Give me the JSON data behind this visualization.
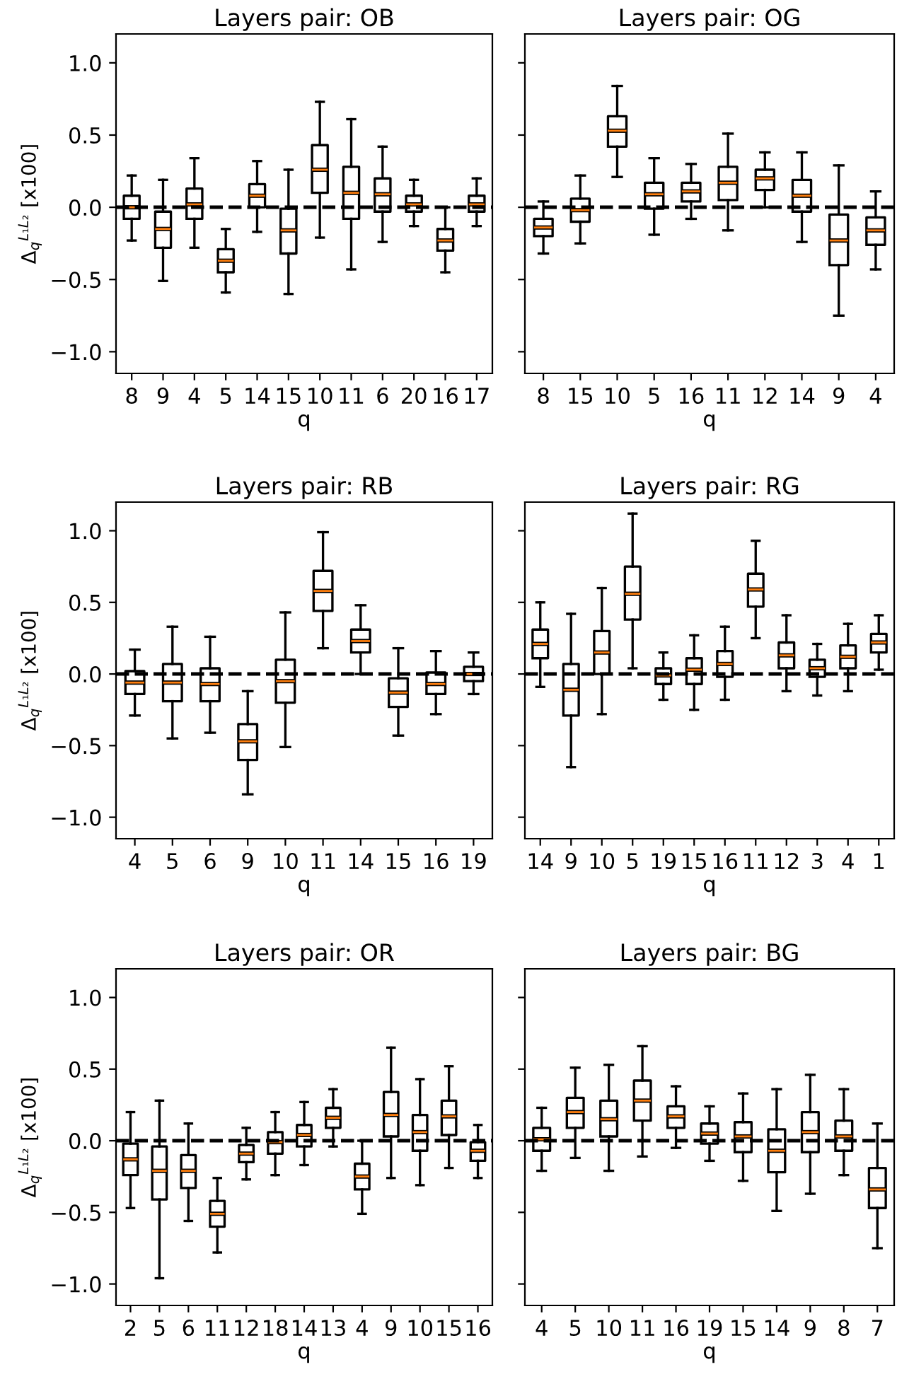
{
  "chart_data": [
    {
      "type": "box",
      "title": "Layers pair: OB",
      "xlabel": "q",
      "ylabel": "Δ$_{q}$$^{L₁L₂}$ [x100]",
      "categories": [
        "8",
        "9",
        "4",
        "5",
        "14",
        "15",
        "10",
        "11",
        "6",
        "20",
        "16",
        "17"
      ],
      "ylim": [
        -1.15,
        1.2
      ],
      "yticks": [
        {
          "value": -1.0,
          "label": "−1.0"
        },
        {
          "value": -0.5,
          "label": "−0.5"
        },
        {
          "value": 0.0,
          "label": "0.0"
        },
        {
          "value": 0.5,
          "label": "0.5"
        },
        {
          "value": 1.0,
          "label": "1.0"
        }
      ],
      "grid": false,
      "ref_lines": [
        {
          "axis": "y",
          "value": 0,
          "color": "#000000",
          "line_style": "dashed"
        }
      ],
      "boxes": [
        {
          "low": -0.23,
          "q1": -0.08,
          "median": 0.0,
          "q3": 0.08,
          "high": 0.22
        },
        {
          "low": -0.51,
          "q1": -0.28,
          "median": -0.15,
          "q3": -0.03,
          "high": 0.19
        },
        {
          "low": -0.28,
          "q1": -0.08,
          "median": 0.02,
          "q3": 0.13,
          "high": 0.34
        },
        {
          "low": -0.59,
          "q1": -0.45,
          "median": -0.37,
          "q3": -0.29,
          "high": -0.15
        },
        {
          "low": -0.17,
          "q1": 0.0,
          "median": 0.08,
          "q3": 0.16,
          "high": 0.32
        },
        {
          "low": -0.6,
          "q1": -0.32,
          "median": -0.16,
          "q3": -0.01,
          "high": 0.26
        },
        {
          "low": -0.21,
          "q1": 0.1,
          "median": 0.26,
          "q3": 0.43,
          "high": 0.73
        },
        {
          "low": -0.43,
          "q1": -0.08,
          "median": 0.1,
          "q3": 0.28,
          "high": 0.61
        },
        {
          "low": -0.24,
          "q1": -0.03,
          "median": 0.09,
          "q3": 0.2,
          "high": 0.42
        },
        {
          "low": -0.13,
          "q1": -0.03,
          "median": 0.02,
          "q3": 0.08,
          "high": 0.19
        },
        {
          "low": -0.45,
          "q1": -0.3,
          "median": -0.23,
          "q3": -0.15,
          "high": 0.0
        },
        {
          "low": -0.13,
          "q1": -0.03,
          "median": 0.02,
          "q3": 0.08,
          "high": 0.2
        }
      ]
    },
    {
      "type": "box",
      "title": "Layers pair: OG",
      "xlabel": "q",
      "categories": [
        "8",
        "15",
        "10",
        "5",
        "16",
        "11",
        "12",
        "14",
        "9",
        "4"
      ],
      "ylim": [
        -1.15,
        1.2
      ],
      "yticks": [
        {
          "value": -1.0,
          "label": null
        },
        {
          "value": -0.5,
          "label": null
        },
        {
          "value": 0.0,
          "label": null
        },
        {
          "value": 0.5,
          "label": null
        },
        {
          "value": 1.0,
          "label": null
        }
      ],
      "tick_labels": "x",
      "grid": false,
      "ref_lines": [
        {
          "axis": "y",
          "value": 0,
          "color": "#000000",
          "line_style": "dashed"
        }
      ],
      "boxes": [
        {
          "low": -0.32,
          "q1": -0.2,
          "median": -0.14,
          "q3": -0.08,
          "high": 0.04
        },
        {
          "low": -0.25,
          "q1": -0.1,
          "median": -0.02,
          "q3": 0.06,
          "high": 0.22
        },
        {
          "low": 0.21,
          "q1": 0.42,
          "median": 0.53,
          "q3": 0.63,
          "high": 0.84
        },
        {
          "low": -0.19,
          "q1": -0.01,
          "median": 0.09,
          "q3": 0.17,
          "high": 0.34
        },
        {
          "low": -0.08,
          "q1": 0.04,
          "median": 0.11,
          "q3": 0.17,
          "high": 0.3
        },
        {
          "low": -0.16,
          "q1": 0.05,
          "median": 0.17,
          "q3": 0.28,
          "high": 0.51
        },
        {
          "low": 0.0,
          "q1": 0.12,
          "median": 0.2,
          "q3": 0.26,
          "high": 0.38
        },
        {
          "low": -0.24,
          "q1": -0.03,
          "median": 0.08,
          "q3": 0.19,
          "high": 0.38
        },
        {
          "low": -0.75,
          "q1": -0.4,
          "median": -0.23,
          "q3": -0.05,
          "high": 0.29
        },
        {
          "low": -0.43,
          "q1": -0.26,
          "median": -0.16,
          "q3": -0.07,
          "high": 0.11
        }
      ]
    },
    {
      "type": "box",
      "title": "Layers pair: RB",
      "xlabel": "q",
      "ylabel": "Δ$_{q}$$^{L₁L₂}$ [x100]",
      "categories": [
        "4",
        "5",
        "6",
        "9",
        "10",
        "11",
        "14",
        "15",
        "16",
        "19"
      ],
      "ylim": [
        -1.15,
        1.2
      ],
      "yticks": [
        {
          "value": -1.0,
          "label": "−1.0"
        },
        {
          "value": -0.5,
          "label": "−0.5"
        },
        {
          "value": 0.0,
          "label": "0.0"
        },
        {
          "value": 0.5,
          "label": "0.5"
        },
        {
          "value": 1.0,
          "label": "1.0"
        }
      ],
      "grid": false,
      "ref_lines": [
        {
          "axis": "y",
          "value": 0,
          "color": "#000000",
          "line_style": "dashed"
        }
      ],
      "boxes": [
        {
          "low": -0.29,
          "q1": -0.14,
          "median": -0.06,
          "q3": 0.02,
          "high": 0.17
        },
        {
          "low": -0.45,
          "q1": -0.19,
          "median": -0.06,
          "q3": 0.07,
          "high": 0.33
        },
        {
          "low": -0.41,
          "q1": -0.19,
          "median": -0.07,
          "q3": 0.04,
          "high": 0.26
        },
        {
          "low": -0.84,
          "q1": -0.6,
          "median": -0.47,
          "q3": -0.35,
          "high": -0.12
        },
        {
          "low": -0.51,
          "q1": -0.2,
          "median": -0.05,
          "q3": 0.1,
          "high": 0.43
        },
        {
          "low": 0.18,
          "q1": 0.44,
          "median": 0.58,
          "q3": 0.72,
          "high": 0.99
        },
        {
          "low": 0.0,
          "q1": 0.15,
          "median": 0.23,
          "q3": 0.31,
          "high": 0.48
        },
        {
          "low": -0.43,
          "q1": -0.23,
          "median": -0.13,
          "q3": -0.03,
          "high": 0.18
        },
        {
          "low": -0.28,
          "q1": -0.14,
          "median": -0.07,
          "q3": 0.01,
          "high": 0.16
        },
        {
          "low": -0.14,
          "q1": -0.05,
          "median": 0.0,
          "q3": 0.05,
          "high": 0.15
        }
      ]
    },
    {
      "type": "box",
      "title": "Layers pair: RG",
      "xlabel": "q",
      "categories": [
        "14",
        "9",
        "10",
        "5",
        "19",
        "15",
        "16",
        "11",
        "12",
        "3",
        "4",
        "1"
      ],
      "ylim": [
        -1.15,
        1.2
      ],
      "yticks": [
        {
          "value": -1.0,
          "label": null
        },
        {
          "value": -0.5,
          "label": null
        },
        {
          "value": 0.0,
          "label": null
        },
        {
          "value": 0.5,
          "label": null
        },
        {
          "value": 1.0,
          "label": null
        }
      ],
      "tick_labels": "x",
      "grid": false,
      "ref_lines": [
        {
          "axis": "y",
          "value": 0,
          "color": "#000000",
          "line_style": "dashed"
        }
      ],
      "boxes": [
        {
          "low": -0.09,
          "q1": 0.11,
          "median": 0.21,
          "q3": 0.31,
          "high": 0.5
        },
        {
          "low": -0.65,
          "q1": -0.29,
          "median": -0.11,
          "q3": 0.07,
          "high": 0.42
        },
        {
          "low": -0.28,
          "q1": 0.0,
          "median": 0.15,
          "q3": 0.3,
          "high": 0.6
        },
        {
          "low": 0.04,
          "q1": 0.38,
          "median": 0.56,
          "q3": 0.75,
          "high": 1.12
        },
        {
          "low": -0.18,
          "q1": -0.07,
          "median": -0.01,
          "q3": 0.04,
          "high": 0.15
        },
        {
          "low": -0.25,
          "q1": -0.07,
          "median": 0.03,
          "q3": 0.11,
          "high": 0.27
        },
        {
          "low": -0.18,
          "q1": -0.02,
          "median": 0.07,
          "q3": 0.16,
          "high": 0.33
        },
        {
          "low": 0.25,
          "q1": 0.47,
          "median": 0.59,
          "q3": 0.7,
          "high": 0.93
        },
        {
          "low": -0.12,
          "q1": 0.04,
          "median": 0.13,
          "q3": 0.22,
          "high": 0.41
        },
        {
          "low": -0.15,
          "q1": -0.02,
          "median": 0.04,
          "q3": 0.1,
          "high": 0.21
        },
        {
          "low": -0.12,
          "q1": 0.04,
          "median": 0.12,
          "q3": 0.2,
          "high": 0.35
        },
        {
          "low": 0.03,
          "q1": 0.15,
          "median": 0.22,
          "q3": 0.28,
          "high": 0.41
        }
      ]
    },
    {
      "type": "box",
      "title": "Layers pair: OR",
      "xlabel": "q",
      "ylabel": "Δ$_{q}$$^{L₁L₂}$ [x100]",
      "categories": [
        "2",
        "5",
        "6",
        "11",
        "12",
        "18",
        "14",
        "13",
        "4",
        "9",
        "10",
        "15",
        "16"
      ],
      "ylim": [
        -1.15,
        1.2
      ],
      "yticks": [
        {
          "value": -1.0,
          "label": "−1.0"
        },
        {
          "value": -0.5,
          "label": "−0.5"
        },
        {
          "value": 0.0,
          "label": "0.0"
        },
        {
          "value": 0.5,
          "label": "0.5"
        },
        {
          "value": 1.0,
          "label": "1.0"
        }
      ],
      "grid": false,
      "ref_lines": [
        {
          "axis": "y",
          "value": 0,
          "color": "#000000",
          "line_style": "dashed"
        }
      ],
      "boxes": [
        {
          "low": -0.47,
          "q1": -0.24,
          "median": -0.13,
          "q3": -0.02,
          "high": 0.2
        },
        {
          "low": -0.96,
          "q1": -0.41,
          "median": -0.21,
          "q3": -0.04,
          "high": 0.28
        },
        {
          "low": -0.56,
          "q1": -0.33,
          "median": -0.21,
          "q3": -0.1,
          "high": 0.12
        },
        {
          "low": -0.78,
          "q1": -0.6,
          "median": -0.51,
          "q3": -0.42,
          "high": -0.26
        },
        {
          "low": -0.27,
          "q1": -0.15,
          "median": -0.09,
          "q3": -0.03,
          "high": 0.09
        },
        {
          "low": -0.24,
          "q1": -0.09,
          "median": -0.01,
          "q3": 0.06,
          "high": 0.2
        },
        {
          "low": -0.17,
          "q1": -0.04,
          "median": 0.04,
          "q3": 0.11,
          "high": 0.27
        },
        {
          "low": -0.04,
          "q1": 0.09,
          "median": 0.16,
          "q3": 0.23,
          "high": 0.36
        },
        {
          "low": -0.51,
          "q1": -0.34,
          "median": -0.25,
          "q3": -0.16,
          "high": 0.0
        },
        {
          "low": -0.26,
          "q1": 0.03,
          "median": 0.18,
          "q3": 0.34,
          "high": 0.65
        },
        {
          "low": -0.31,
          "q1": -0.07,
          "median": 0.06,
          "q3": 0.18,
          "high": 0.43
        },
        {
          "low": -0.19,
          "q1": 0.04,
          "median": 0.17,
          "q3": 0.28,
          "high": 0.52
        },
        {
          "low": -0.26,
          "q1": -0.14,
          "median": -0.07,
          "q3": -0.01,
          "high": 0.11
        }
      ]
    },
    {
      "type": "box",
      "title": "Layers pair: BG",
      "xlabel": "q",
      "categories": [
        "4",
        "5",
        "10",
        "11",
        "16",
        "19",
        "15",
        "14",
        "9",
        "8",
        "7"
      ],
      "ylim": [
        -1.15,
        1.2
      ],
      "yticks": [
        {
          "value": -1.0,
          "label": null
        },
        {
          "value": -0.5,
          "label": null
        },
        {
          "value": 0.0,
          "label": null
        },
        {
          "value": 0.5,
          "label": null
        },
        {
          "value": 1.0,
          "label": null
        }
      ],
      "tick_labels": "x",
      "grid": false,
      "ref_lines": [
        {
          "axis": "y",
          "value": 0,
          "color": "#000000",
          "line_style": "dashed"
        }
      ],
      "boxes": [
        {
          "low": -0.21,
          "q1": -0.07,
          "median": 0.01,
          "q3": 0.09,
          "high": 0.23
        },
        {
          "low": -0.12,
          "q1": 0.09,
          "median": 0.2,
          "q3": 0.3,
          "high": 0.51
        },
        {
          "low": -0.21,
          "q1": 0.03,
          "median": 0.15,
          "q3": 0.28,
          "high": 0.53
        },
        {
          "low": -0.11,
          "q1": 0.14,
          "median": 0.28,
          "q3": 0.42,
          "high": 0.66
        },
        {
          "low": -0.05,
          "q1": 0.09,
          "median": 0.17,
          "q3": 0.24,
          "high": 0.38
        },
        {
          "low": -0.14,
          "q1": -0.02,
          "median": 0.05,
          "q3": 0.12,
          "high": 0.24
        },
        {
          "low": -0.28,
          "q1": -0.08,
          "median": 0.03,
          "q3": 0.13,
          "high": 0.33
        },
        {
          "low": -0.49,
          "q1": -0.22,
          "median": -0.07,
          "q3": 0.08,
          "high": 0.36
        },
        {
          "low": -0.37,
          "q1": -0.08,
          "median": 0.06,
          "q3": 0.2,
          "high": 0.46
        },
        {
          "low": -0.24,
          "q1": -0.07,
          "median": 0.03,
          "q3": 0.14,
          "high": 0.36
        },
        {
          "low": -0.75,
          "q1": -0.47,
          "median": -0.34,
          "q3": -0.19,
          "high": 0.12
        }
      ]
    }
  ]
}
